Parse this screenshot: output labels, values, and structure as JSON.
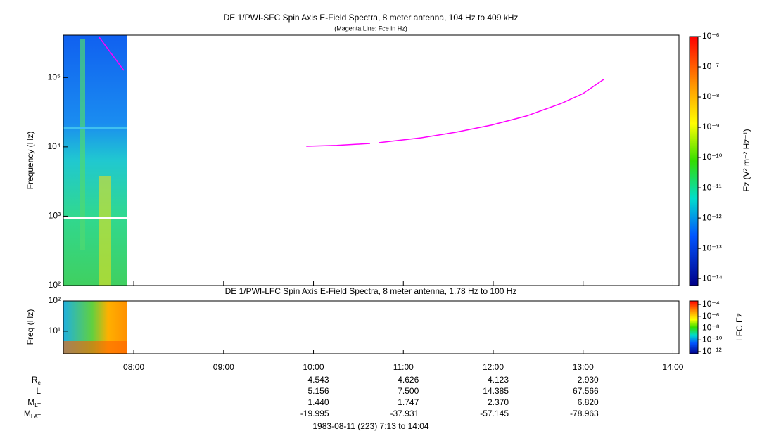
{
  "chart_data": [
    {
      "type": "line",
      "title": "DE 1/PWI-SFC  Spin Axis E-Field Spectra, 8 meter antenna, 104 Hz to 409 kHz",
      "subtitle": "(Magenta Line: Fce in Hz)",
      "y_label": "Frequency (Hz)",
      "log_y": true,
      "xlim": [
        7.2167,
        14.0667
      ],
      "xticks": [
        8,
        9,
        10,
        11,
        12,
        13,
        14
      ],
      "ylim": [
        100,
        409000
      ],
      "yticks": [
        {
          "value": 100,
          "label": "10²"
        },
        {
          "value": 1000,
          "label": "10³"
        },
        {
          "value": 10000,
          "label": "10⁴"
        },
        {
          "value": 100000,
          "label": "10⁵"
        }
      ],
      "x": [
        7.61,
        7.89,
        9.0,
        9.92,
        10.26,
        10.63,
        10.68,
        10.73,
        11.2,
        11.59,
        11.98,
        12.37,
        12.76,
        13.0,
        13.23
      ],
      "series": [
        {
          "color": "#ff00ff",
          "values": [
            390000,
            127000,
            null,
            10200,
            10500,
            11200,
            null,
            11500,
            13500,
            16300,
            20600,
            27900,
            42500,
            58900,
            94000
          ]
        }
      ],
      "colorbar": {
        "label": "Ez (V² m⁻² Hz⁻¹)",
        "log": true,
        "lim": [
          1e-06,
          5.9e-15
        ],
        "ticks": [
          {
            "value": 1e-06,
            "label": "10⁻⁶"
          },
          {
            "value": 1e-07,
            "label": "10⁻⁷"
          },
          {
            "value": 1e-08,
            "label": "10⁻⁸"
          },
          {
            "value": 1e-09,
            "label": "10⁻⁹"
          },
          {
            "value": 1e-10,
            "label": "10⁻¹⁰"
          },
          {
            "value": 1e-11,
            "label": "10⁻¹¹"
          },
          {
            "value": 1e-12,
            "label": "10⁻¹²"
          },
          {
            "value": 1e-13,
            "label": "10⁻¹³"
          },
          {
            "value": 1e-14,
            "label": "10⁻¹⁴"
          }
        ]
      }
    },
    {
      "type": "spectrogram",
      "title": "DE 1/PWI-LFC  Spin Axis E-Field Spectra, 8 meter antenna, 1.78 Hz to 100 Hz",
      "y_label": "Freq (Hz)",
      "log_y": true,
      "xlim": [
        7.2167,
        14.0667
      ],
      "xticks": [
        {
          "value": 8,
          "label": "08:00"
        },
        {
          "value": 9,
          "label": "09:00"
        },
        {
          "value": 10,
          "label": "10:00"
        },
        {
          "value": 11,
          "label": "11:00"
        },
        {
          "value": 12,
          "label": "12:00"
        },
        {
          "value": 13,
          "label": "13:00"
        },
        {
          "value": 14,
          "label": "14:00"
        }
      ],
      "ylim": [
        1.78,
        100
      ],
      "yticks": [
        {
          "value": 10,
          "label": "10¹"
        },
        {
          "value": 100,
          "label": "10²"
        }
      ],
      "colorbar": {
        "label": "LFC Ez",
        "log": true,
        "lim": [
          0.0004,
          4.4e-13
        ],
        "ticks": [
          {
            "value": 0.0001,
            "label": "10⁻⁴"
          },
          {
            "value": 1e-06,
            "label": "10⁻⁶"
          },
          {
            "value": 1e-08,
            "label": "10⁻⁸"
          },
          {
            "value": 1e-10,
            "label": "10⁻¹⁰"
          },
          {
            "value": 1e-12,
            "label": "10⁻¹²"
          }
        ]
      }
    }
  ],
  "ephemeris": {
    "times": [
      10,
      11,
      12,
      13
    ],
    "rows": [
      {
        "label": "R",
        "sub": "e",
        "values": [
          "4.543",
          "4.626",
          "4.123",
          "2.930"
        ]
      },
      {
        "label": "L",
        "values": [
          "5.156",
          "7.500",
          "14.385",
          "67.566"
        ]
      },
      {
        "label": "M",
        "sub": "LT",
        "values": [
          "1.440",
          "1.747",
          "2.370",
          "6.820"
        ]
      },
      {
        "label": "M",
        "sub": "LAT",
        "values": [
          "-19.995",
          "-37.931",
          "-57.145",
          "-78.963"
        ]
      }
    ]
  },
  "footer": "1983-08-11 (223) 7:13 to 14:04"
}
